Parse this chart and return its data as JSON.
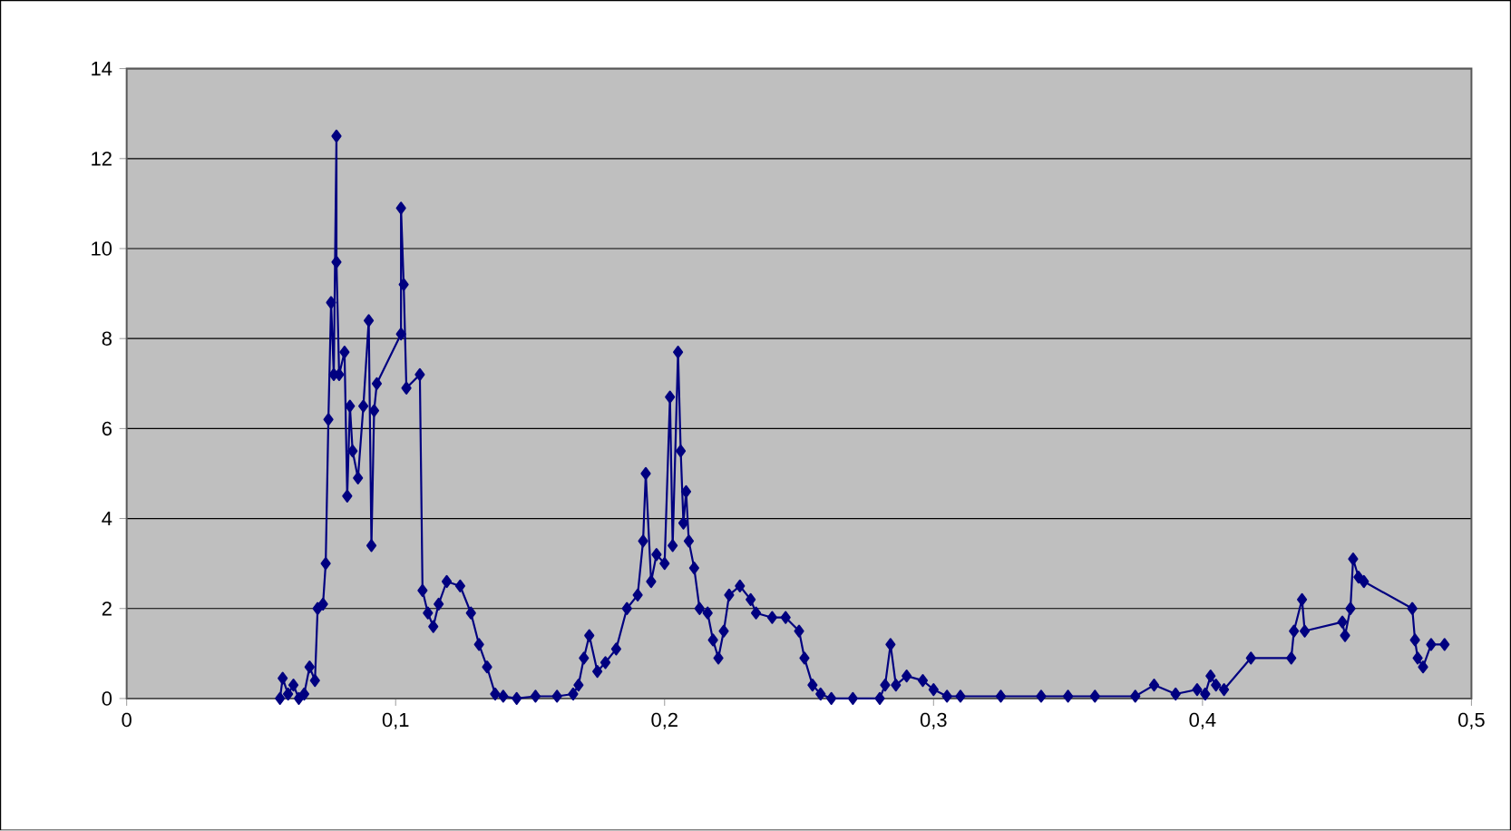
{
  "chart_data": {
    "type": "line",
    "marker": "diamond",
    "grid": "y",
    "xlim": [
      0,
      0.5
    ],
    "ylim": [
      0,
      14
    ],
    "xticks": [
      0,
      {
        "value": 0.1,
        "label": "0,1"
      },
      {
        "value": 0.2,
        "label": "0,2"
      },
      {
        "value": 0.3,
        "label": "0,3"
      },
      {
        "value": 0.4,
        "label": "0,4"
      },
      {
        "value": 0.5,
        "label": "0,5"
      }
    ],
    "yticks": [
      0,
      2,
      4,
      6,
      8,
      10,
      12,
      14
    ],
    "series": [
      {
        "color": "#000080",
        "x": [
          0.057,
          0.058,
          0.06,
          0.062,
          0.064,
          0.066,
          0.068,
          0.07,
          0.071,
          0.073,
          0.074,
          0.075,
          0.076,
          0.077,
          0.078,
          0.078,
          0.079,
          0.081,
          0.082,
          0.083,
          0.084,
          0.086,
          0.088,
          0.09,
          0.091,
          0.092,
          0.093,
          0.102,
          0.102,
          0.103,
          0.104,
          0.109,
          0.11,
          0.112,
          0.114,
          0.116,
          0.119,
          0.124,
          0.128,
          0.131,
          0.134,
          0.137,
          0.14,
          0.145,
          0.152,
          0.16,
          0.166,
          0.168,
          0.17,
          0.172,
          0.175,
          0.178,
          0.182,
          0.186,
          0.19,
          0.192,
          0.193,
          0.195,
          0.197,
          0.2,
          0.202,
          0.203,
          0.205,
          0.206,
          0.207,
          0.208,
          0.209,
          0.211,
          0.213,
          0.216,
          0.218,
          0.22,
          0.222,
          0.224,
          0.228,
          0.232,
          0.234,
          0.24,
          0.245,
          0.25,
          0.252,
          0.255,
          0.258,
          0.262,
          0.27,
          0.28,
          0.282,
          0.284,
          0.286,
          0.29,
          0.296,
          0.3,
          0.305,
          0.31,
          0.325,
          0.34,
          0.35,
          0.36,
          0.375,
          0.382,
          0.39,
          0.398,
          0.401,
          0.403,
          0.405,
          0.408,
          0.418,
          0.433,
          0.434,
          0.437,
          0.438,
          0.452,
          0.453,
          0.455,
          0.456,
          0.458,
          0.46,
          0.478,
          0.479,
          0.48,
          0.482,
          0.485,
          0.49
        ],
        "values": [
          0,
          0.45,
          0.1,
          0.3,
          0,
          0.1,
          0.7,
          0.4,
          2.0,
          2.1,
          3,
          6.2,
          8.8,
          7.2,
          12.5,
          9.7,
          7.2,
          7.7,
          4.5,
          6.5,
          5.5,
          4.9,
          6.5,
          8.4,
          3.4,
          6.4,
          7.0,
          8.1,
          10.9,
          9.2,
          6.9,
          7.2,
          2.4,
          1.9,
          1.6,
          2.1,
          2.6,
          2.5,
          1.9,
          1.2,
          0.7,
          0.1,
          0.05,
          0,
          0.05,
          0.05,
          0.1,
          0.3,
          0.9,
          1.4,
          0.6,
          0.8,
          1.1,
          2.0,
          2.3,
          3.5,
          5.0,
          2.6,
          3.2,
          3.0,
          6.7,
          3.4,
          7.7,
          5.5,
          3.9,
          4.6,
          3.5,
          2.9,
          2.0,
          1.9,
          1.3,
          0.9,
          1.5,
          2.3,
          2.5,
          2.2,
          1.9,
          1.8,
          1.8,
          1.5,
          0.9,
          0.3,
          0.1,
          0,
          0,
          0,
          0.3,
          1.2,
          0.3,
          0.5,
          0.4,
          0.2,
          0.05,
          0.05,
          0.05,
          0.05,
          0.05,
          0.05,
          0.05,
          0.3,
          0.1,
          0.2,
          0.1,
          0.5,
          0.3,
          0.2,
          0.9,
          0.9,
          1.5,
          2.2,
          1.5,
          1.7,
          1.4,
          2.0,
          3.1,
          2.7,
          2.6,
          2.0,
          1.3,
          0.9,
          0.7,
          1.2,
          1.2
        ]
      }
    ]
  }
}
